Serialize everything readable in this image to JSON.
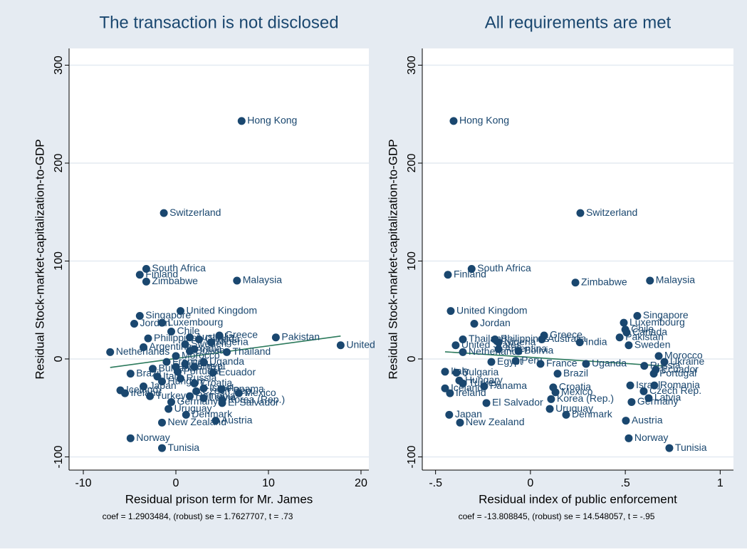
{
  "chart_data": [
    {
      "type": "scatter",
      "title": "The transaction is not disclosed",
      "xlabel": "Residual prison term for Mr. James",
      "ylabel": "Residual Stock-market-capitalization-to-GDP",
      "note": "coef = 1.2903484, (robust) se = 1.7627707, t = .73",
      "xlim": [
        -11.54,
        20.85
      ],
      "ylim": [
        -113.5,
        317.1
      ],
      "xticks": [
        -10,
        0,
        10,
        20
      ],
      "yticks": [
        -100,
        0,
        100,
        200,
        300
      ],
      "grid": true,
      "color": "#1a476f",
      "point_labels": [
        "Hong Kong",
        "Switzerland",
        "South Africa",
        "Finland",
        "Zimbabwe",
        "Malaysia",
        "Singapore",
        "United Kingdom",
        "Jordan",
        "Luxembourg",
        "Chile",
        "Greece",
        "Nigeria",
        "Pakistan",
        "United",
        "Thailand",
        "Bolivia",
        "Netherlands",
        "Ecuador",
        "Brazil",
        "Hungary",
        "Panama",
        "Mexico",
        "Korea (Rep.)",
        "El Salvador",
        "Uruguay",
        "Denmark",
        "Austria",
        "New Zealand",
        "Norway",
        "Tunisia",
        "Iceland",
        "Ireland",
        "Germany",
        "Portugal",
        "France",
        "India",
        "Canada",
        "Sweden",
        "Morocco",
        "Italy",
        "Croatia",
        "Israel",
        "Japan",
        "Australia",
        "Peru",
        "Egypt",
        "Uganda",
        "Philippines",
        "Romania",
        "Latvia",
        "Czech Rep.",
        "Bulgaria",
        "Turkey",
        "Russia",
        "Ukraine",
        "Argentina"
      ],
      "x": [
        7.1,
        -1.3,
        -3.2,
        -3.9,
        -3.2,
        6.6,
        -3.9,
        0.5,
        -4.5,
        -1.5,
        -0.5,
        4.7,
        3.8,
        10.8,
        17.8,
        5.5,
        1.5,
        -7.1,
        4,
        -4.9,
        -1.5,
        4.9,
        6.8,
        5,
        5,
        -0.8,
        1.1,
        4.3,
        -1.5,
        -4.9,
        -1.5,
        -6,
        -5.5,
        -0.5,
        0.2,
        -1,
        2,
        2.5,
        1,
        0,
        -2,
        2,
        3,
        -3.5,
        1.5,
        1,
        2,
        3,
        -3,
        1.5,
        3,
        2.2,
        -2.5,
        -2.8,
        0.5,
        0,
        -3.5
      ],
      "values": [
        243,
        149,
        92,
        86,
        79,
        80,
        44,
        49,
        36,
        37,
        28,
        24,
        17,
        22,
        14,
        7,
        8,
        7,
        -14,
        -15,
        -23,
        -31,
        -35,
        -42,
        -45,
        -51,
        -57,
        -63,
        -65,
        -81,
        -91,
        -32,
        -35,
        -44,
        -13,
        -3,
        10,
        20,
        15,
        3,
        -18,
        -25,
        -30,
        -28,
        22,
        -5,
        -8,
        -3,
        21,
        -38,
        -40,
        -33,
        -10,
        -38,
        -20,
        -8,
        12
      ],
      "fit_line": {
        "x": [
          -7.1,
          17.8
        ],
        "values": [
          -8.7,
          23.4
        ],
        "color": "#2c7a5c"
      }
    },
    {
      "type": "scatter",
      "title": "All requirements are met",
      "xlabel": "Residual index of public enforcement",
      "ylabel": "Residual Stock-market-capitalization-to-GDP",
      "note": "coef = -13.808845, (robust) se = 14.548057, t = -.95",
      "xlim": [
        -0.57,
        1.07
      ],
      "ylim": [
        -113.5,
        317.1
      ],
      "xticks": [
        {
          "value": -0.5,
          "label": "-.5"
        },
        0,
        {
          "value": 0.5,
          "label": ".5"
        },
        1
      ],
      "yticks": [
        -100,
        0,
        100,
        200,
        300
      ],
      "grid": true,
      "color": "#1a476f",
      "point_labels": [
        "Hong Kong",
        "Switzerland",
        "South Africa",
        "Finland",
        "Zimbabwe",
        "Malaysia",
        "Singapore",
        "United Kingdom",
        "Jordan",
        "Luxembourg",
        "Chile",
        "Greece",
        "Nigeria",
        "Pakistan",
        "United States",
        "Thailand",
        "Bolivia",
        "Netherlands",
        "Ecuador",
        "Brazil",
        "Hungary",
        "Panama",
        "Mexico",
        "Korea (Rep.)",
        "El Salvador",
        "Uruguay",
        "Denmark",
        "Austria",
        "New Zealand",
        "Norway",
        "Tunisia",
        "Iceland",
        "Ireland",
        "Germany",
        "Portugal",
        "France",
        "India",
        "Canada",
        "Sweden",
        "Morocco",
        "Italy",
        "Croatia",
        "Israel",
        "Japan",
        "Australia",
        "Peru",
        "Egypt",
        "Uganda",
        "Philippines",
        "Romania",
        "Latvia",
        "Czech Rep.",
        "Bulgaria",
        "Turkey",
        "Russia",
        "Ukraine",
        "Argentina"
      ],
      "x": [
        -0.405,
        0.263,
        -0.31,
        -0.435,
        0.237,
        0.63,
        0.563,
        -0.42,
        -0.296,
        0.492,
        0.5,
        0.072,
        -0.168,
        0.47,
        -0.394,
        -0.356,
        -0.063,
        -0.356,
        0.66,
        0.143,
        -0.375,
        -0.244,
        0.132,
        0.109,
        -0.232,
        0.102,
        0.188,
        0.503,
        -0.371,
        0.518,
        0.732,
        -0.45,
        -0.424,
        0.533,
        0.65,
        0.053,
        0.26,
        0.507,
        0.518,
        0.676,
        -0.45,
        0.12,
        0.526,
        -0.428,
        0.06,
        -0.078,
        -0.206,
        0.293,
        -0.187,
        0.653,
        0.623,
        0.597,
        -0.39,
        -0.356,
        0.6,
        0.706,
        -0.168
      ],
      "values": [
        243,
        149,
        92,
        86,
        78,
        80,
        44,
        49,
        36,
        37,
        30,
        24,
        17,
        22,
        14,
        20,
        8,
        7,
        -11,
        -15,
        -22,
        -28,
        -34,
        -41,
        -45,
        -51,
        -57,
        -63,
        -65,
        -81,
        -91,
        -30,
        -35,
        -44,
        -15,
        -5,
        17,
        27,
        14,
        3,
        -13,
        -29,
        -27,
        -57,
        20,
        -2,
        -3,
        -5,
        20,
        -27,
        -40,
        -33,
        -14,
        -25,
        -7,
        -3,
        10
      ],
      "fit_line": {
        "x": [
          -0.45,
          0.713
        ],
        "values": [
          7.3,
          -7.3
        ],
        "color": "#2c7a5c"
      }
    }
  ]
}
